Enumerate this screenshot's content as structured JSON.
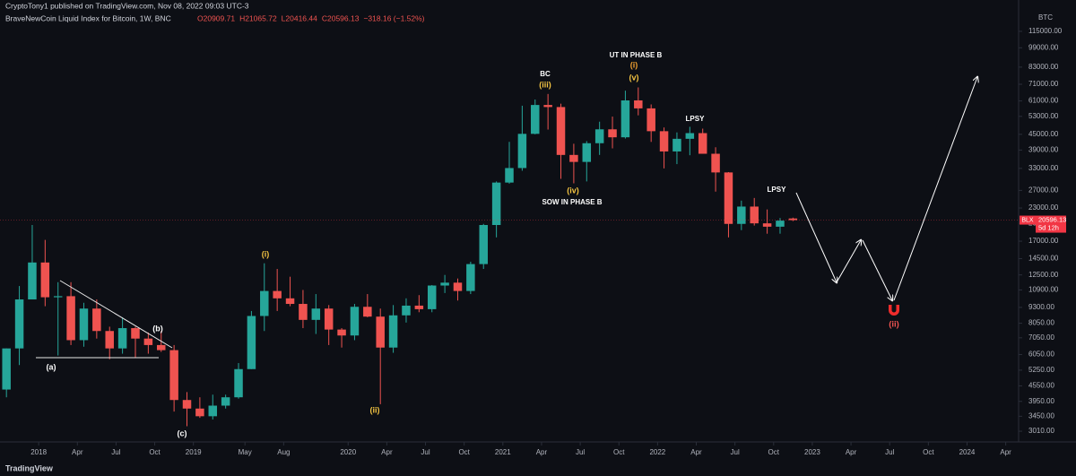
{
  "header": {
    "published": "CryptoTony1 published on TradingView.com, Nov 08, 2022 09:03 UTC-3"
  },
  "footer": {
    "brand": "TradingView"
  },
  "chart_data": {
    "type": "candlestick",
    "title": "BraveNewCoin Liquid Index for Bitcoin, 1W, BNC",
    "ohlc_legend": [
      "O20909.71",
      "H21065.72",
      "L20416.44",
      "C20596.13",
      "−318.16 (−1.52%)"
    ],
    "currency": "BTC",
    "symbol": "BLX",
    "last_price": 20596.13,
    "countdown": "5d 12h",
    "up_color": "#26a69a",
    "down_color": "#ef5350",
    "last_color": "#f23645",
    "log_scale": true,
    "grid": false,
    "ylim": [
      2730,
      153000
    ],
    "yticks": [
      {
        "value": 3010,
        "label": "3010.00"
      },
      {
        "value": 3450,
        "label": "3450.00"
      },
      {
        "value": 3950,
        "label": "3950.00"
      },
      {
        "value": 4550,
        "label": "4550.00"
      },
      {
        "value": 5250,
        "label": "5250.00"
      },
      {
        "value": 6050,
        "label": "6050.00"
      },
      {
        "value": 7050,
        "label": "7050.00"
      },
      {
        "value": 8050,
        "label": "8050.00"
      },
      {
        "value": 9300,
        "label": "9300.00"
      },
      {
        "value": 10900,
        "label": "10900.00"
      },
      {
        "value": 12500,
        "label": "12500.00"
      },
      {
        "value": 14500,
        "label": "14500.00"
      },
      {
        "value": 17000,
        "label": "17000.00"
      },
      {
        "value": 20000,
        "label": "20000.00"
      },
      {
        "value": 23000,
        "label": "23000.00"
      },
      {
        "value": 27000,
        "label": "27000.00"
      },
      {
        "value": 33000,
        "label": "33000.00"
      },
      {
        "value": 39000,
        "label": "39000.00"
      },
      {
        "value": 45000,
        "label": "45000.00"
      },
      {
        "value": 53000,
        "label": "53000.00"
      },
      {
        "value": 61000,
        "label": "61000.00"
      },
      {
        "value": 71000,
        "label": "71000.00"
      },
      {
        "value": 83000,
        "label": "83000.00"
      },
      {
        "value": 99000,
        "label": "99000.00"
      },
      {
        "value": 115000,
        "label": "115000.00"
      }
    ],
    "xlim": [
      "2017-10",
      "2024-05"
    ],
    "xticks": [
      {
        "value": "2018-01",
        "label": "2018"
      },
      {
        "value": "2018-04",
        "label": "Apr"
      },
      {
        "value": "2018-07",
        "label": "Jul"
      },
      {
        "value": "2018-10",
        "label": "Oct"
      },
      {
        "value": "2019-01",
        "label": "2019"
      },
      {
        "value": "2019-05",
        "label": "May"
      },
      {
        "value": "2019-08",
        "label": "Aug"
      },
      {
        "value": "2020-01",
        "label": "2020"
      },
      {
        "value": "2020-04",
        "label": "Apr"
      },
      {
        "value": "2020-07",
        "label": "Jul"
      },
      {
        "value": "2020-10",
        "label": "Oct"
      },
      {
        "value": "2021-01",
        "label": "2021"
      },
      {
        "value": "2021-04",
        "label": "Apr"
      },
      {
        "value": "2021-07",
        "label": "Jul"
      },
      {
        "value": "2021-10",
        "label": "Oct"
      },
      {
        "value": "2022-01",
        "label": "2022"
      },
      {
        "value": "2022-04",
        "label": "Apr"
      },
      {
        "value": "2022-07",
        "label": "Jul"
      },
      {
        "value": "2022-10",
        "label": "Oct"
      },
      {
        "value": "2023-01",
        "label": "2023"
      },
      {
        "value": "2023-04",
        "label": "Apr"
      },
      {
        "value": "2023-07",
        "label": "Jul"
      },
      {
        "value": "2023-10",
        "label": "Oct"
      },
      {
        "value": "2024-01",
        "label": "2024"
      },
      {
        "value": "2024-04",
        "label": "Apr"
      }
    ],
    "x": [
      "2017-10",
      "2017-11",
      "2017-12",
      "2018-01",
      "2018-02",
      "2018-03",
      "2018-04",
      "2018-05",
      "2018-06",
      "2018-07",
      "2018-08",
      "2018-09",
      "2018-10",
      "2018-11",
      "2018-12",
      "2019-01",
      "2019-02",
      "2019-03",
      "2019-04",
      "2019-05",
      "2019-06",
      "2019-07",
      "2019-08",
      "2019-09",
      "2019-10",
      "2019-11",
      "2019-12",
      "2020-01",
      "2020-02",
      "2020-03",
      "2020-04",
      "2020-05",
      "2020-06",
      "2020-07",
      "2020-08",
      "2020-09",
      "2020-10",
      "2020-11",
      "2020-12",
      "2021-01",
      "2021-02",
      "2021-03",
      "2021-04",
      "2021-05",
      "2021-06",
      "2021-07",
      "2021-08",
      "2021-09",
      "2021-10",
      "2021-11",
      "2021-12",
      "2022-01",
      "2022-02",
      "2022-03",
      "2022-04",
      "2022-05",
      "2022-06",
      "2022-07",
      "2022-08",
      "2022-09",
      "2022-10",
      "2022-11"
    ],
    "open": [
      4400,
      6400,
      10000,
      14000,
      10200,
      10300,
      6900,
      9200,
      7500,
      6400,
      7700,
      7000,
      6600,
      6300,
      4000,
      3700,
      3450,
      3800,
      4100,
      5300,
      8600,
      10800,
      10100,
      9600,
      8300,
      9200,
      7600,
      7200,
      9350,
      8550,
      6450,
      8650,
      9450,
      9150,
      11350,
      11650,
      10800,
      13800,
      19700,
      29000,
      33100,
      45200,
      58800,
      57700,
      37300,
      35000,
      41500,
      47100,
      43800,
      61300,
      57000,
      46300,
      38500,
      43200,
      45500,
      37700,
      31800,
      19900,
      23300,
      20000,
      19400,
      20909.71
    ],
    "high": [
      6400,
      11300,
      19700,
      17200,
      11700,
      11700,
      9700,
      10000,
      7800,
      8500,
      7800,
      7400,
      7500,
      6600,
      4300,
      4100,
      4200,
      4200,
      5600,
      9000,
      13900,
      13200,
      12300,
      10900,
      10500,
      9500,
      7700,
      9600,
      10500,
      9200,
      9500,
      10100,
      10400,
      11400,
      12500,
      12100,
      14100,
      19900,
      29300,
      42000,
      58400,
      61800,
      65000,
      59500,
      41300,
      42300,
      50500,
      52900,
      67000,
      69000,
      59100,
      47900,
      45800,
      48200,
      47400,
      40000,
      31900,
      24600,
      25200,
      22700,
      21000,
      21065.72
    ],
    "low": [
      4100,
      5500,
      10700,
      9400,
      6000,
      6600,
      6500,
      7000,
      5800,
      6100,
      5900,
      6100,
      6200,
      3600,
      3150,
      3400,
      3350,
      3700,
      4050,
      5300,
      7500,
      9000,
      9400,
      7700,
      7300,
      6600,
      6450,
      6900,
      8500,
      3850,
      6150,
      8100,
      8900,
      8900,
      10600,
      9900,
      10500,
      13200,
      17600,
      28700,
      32300,
      45000,
      47000,
      30000,
      28800,
      29300,
      37300,
      39600,
      43300,
      53500,
      42000,
      33000,
      34300,
      37200,
      37700,
      26700,
      17600,
      18800,
      19600,
      18200,
      18200,
      20416.44
    ],
    "close": [
      6400,
      10000,
      14000,
      10200,
      10300,
      6900,
      9200,
      7500,
      6400,
      7700,
      7000,
      6600,
      6300,
      4000,
      3700,
      3450,
      3800,
      4100,
      5300,
      8600,
      10800,
      10100,
      9600,
      8300,
      9200,
      7600,
      7200,
      9350,
      8550,
      6450,
      8650,
      9450,
      9150,
      11350,
      11650,
      10800,
      13800,
      19700,
      29000,
      33100,
      45200,
      58800,
      57700,
      37300,
      35000,
      41500,
      47100,
      43800,
      61300,
      57000,
      46300,
      38500,
      43200,
      45500,
      37700,
      31800,
      19900,
      23300,
      20000,
      19400,
      20500,
      20596.13
    ],
    "annotations": [
      "BC",
      "(iii)",
      "UT IN PHASE B",
      "(i)",
      "(v)",
      "LPSY",
      "(iv)",
      "SOW IN PHASE B",
      "LPSY",
      "(i)",
      "(ii)",
      "(a)",
      "(b)",
      "(c)",
      "(ii)"
    ]
  }
}
